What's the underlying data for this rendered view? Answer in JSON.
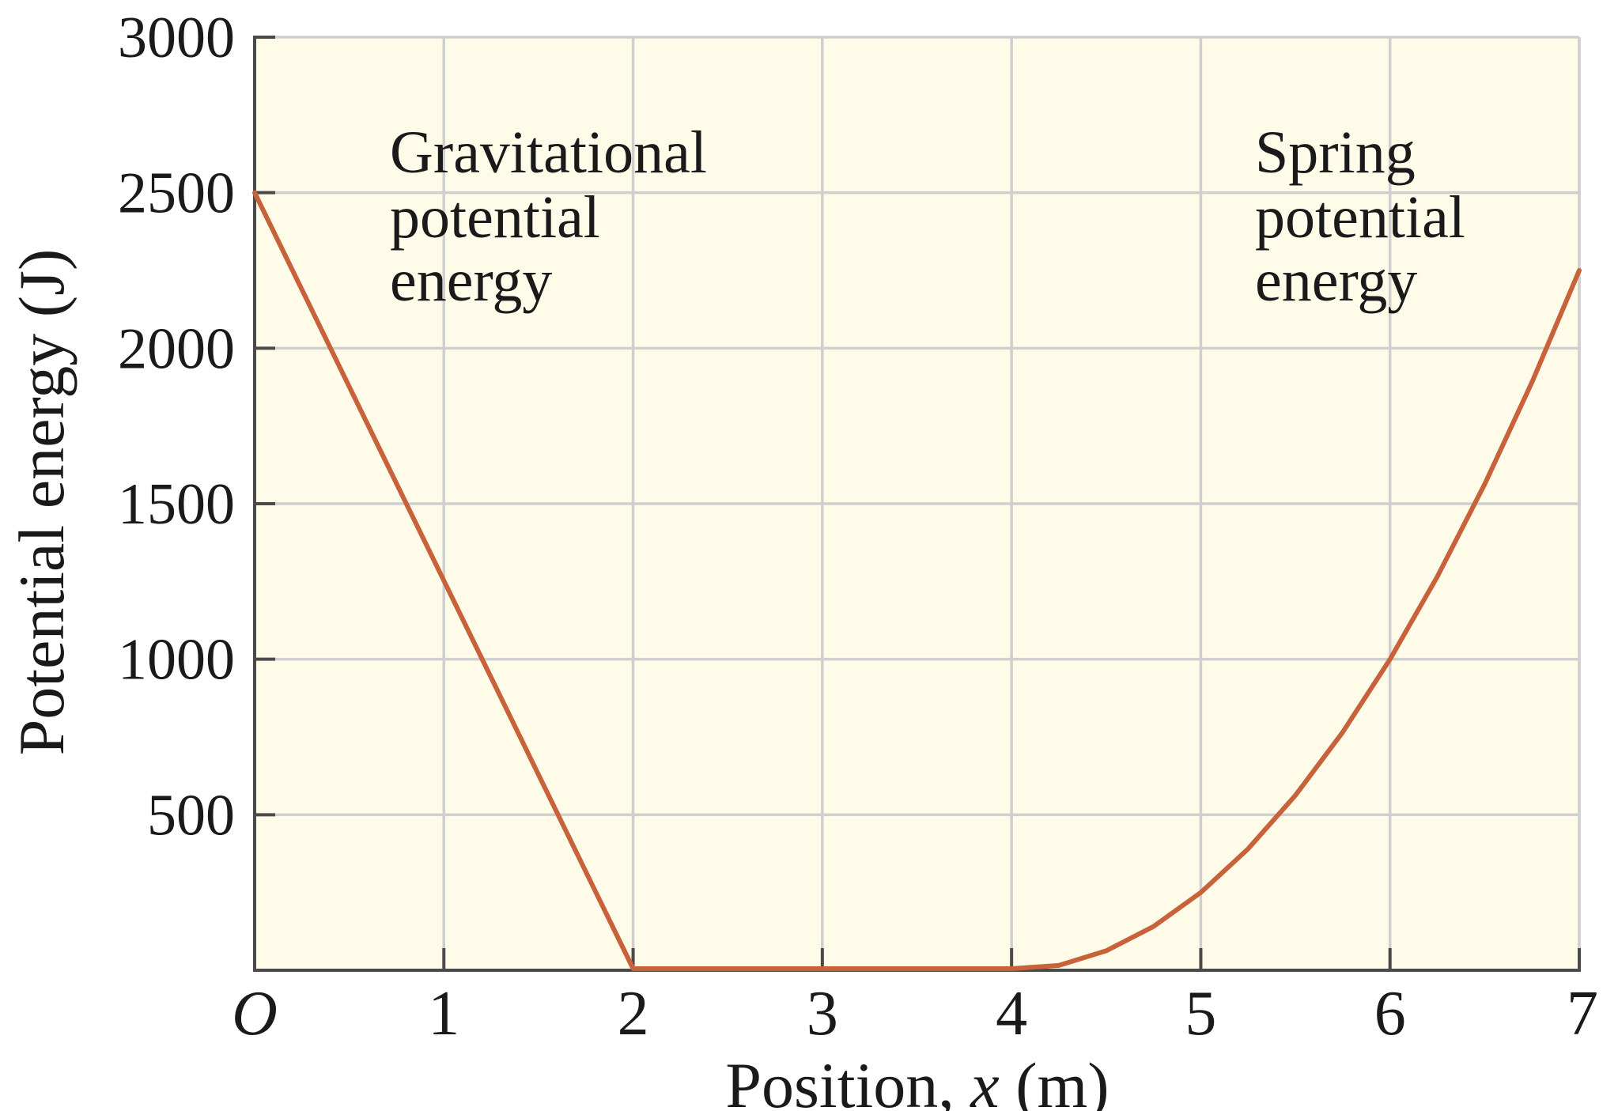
{
  "chart_data": {
    "type": "line",
    "title": "",
    "xlabel_prefix": "Position, ",
    "xlabel_var": "x",
    "xlabel_suffix": " (m)",
    "ylabel": "Potential energy (J)",
    "xlim": [
      0,
      7
    ],
    "ylim": [
      0,
      3000
    ],
    "grid": true,
    "x_ticks": [
      {
        "value": 0,
        "label": "O"
      },
      {
        "value": 1,
        "label": "1"
      },
      {
        "value": 2,
        "label": "2"
      },
      {
        "value": 3,
        "label": "3"
      },
      {
        "value": 4,
        "label": "4"
      },
      {
        "value": 5,
        "label": "5"
      },
      {
        "value": 6,
        "label": "6"
      },
      {
        "value": 7,
        "label": "7"
      }
    ],
    "y_ticks": [
      {
        "value": 500,
        "label": "500"
      },
      {
        "value": 1000,
        "label": "1000"
      },
      {
        "value": 1500,
        "label": "1500"
      },
      {
        "value": 2000,
        "label": "2000"
      },
      {
        "value": 2500,
        "label": "2500"
      },
      {
        "value": 3000,
        "label": "3000"
      }
    ],
    "series": [
      {
        "name": "Potential energy",
        "color": "#c8623a",
        "x": [
          0,
          2,
          2.25,
          2.5,
          2.75,
          3,
          3.25,
          3.5,
          3.75,
          4,
          4.25,
          4.5,
          4.75,
          5,
          5.25,
          5.5,
          5.75,
          6,
          6.25,
          6.5,
          6.75,
          7
        ],
        "y": [
          2500,
          0,
          0,
          0,
          0,
          0,
          0,
          0,
          0,
          0,
          15.6,
          62.5,
          140.6,
          250,
          390.6,
          562.5,
          765.6,
          1000,
          1265.6,
          1562.5,
          1890.6,
          2250
        ]
      }
    ],
    "annotations": [
      {
        "name": "gravitational",
        "lines": [
          "Gravitational",
          "potential",
          "energy"
        ],
        "x": 0.95,
        "y_top": 2500
      },
      {
        "name": "spring",
        "lines": [
          "Spring",
          "potential",
          "energy"
        ],
        "x": 5.28,
        "y_top": 2500
      }
    ]
  },
  "colors": {
    "plot_background": "#fffbe9",
    "grid": "#cfcfcf",
    "axis": "#4a4a4a",
    "curve": "#c8623a"
  }
}
